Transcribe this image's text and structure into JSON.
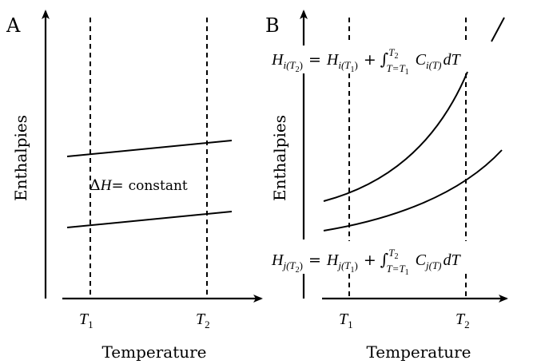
{
  "panel_a": {
    "label": "A",
    "y_axis_label": "Enthalpies",
    "x_axis_label": "Temperature",
    "t1_label": "T",
    "t1_sub": "1",
    "t2_label": "T",
    "t2_sub": "2",
    "delta_symbol": "Δ",
    "delta_var": "H",
    "delta_eq": "=",
    "delta_text": "constant"
  },
  "panel_b": {
    "label": "B",
    "y_axis_label": "Enthalpies",
    "x_axis_label": "Temperature",
    "t1_label": "T",
    "t1_sub": "1",
    "t2_label": "T",
    "t2_sub": "2",
    "eq_top": {
      "H": "H",
      "sub_i": "i(T",
      "sub_2": "2",
      "close": ")",
      "eq": "=",
      "H2": "H",
      "sub_i1": "i(T",
      "sub_1": "1",
      "close2": ")",
      "plus": "+",
      "integral": "∫",
      "upper": "T",
      "upper_sub": "2",
      "lower": "T=T",
      "lower_sub": "1",
      "C": "C",
      "c_sub": "i(T)",
      "dT": "dT"
    },
    "eq_bottom": {
      "H": "H",
      "sub_i": "j(T",
      "sub_2": "2",
      "close": ")",
      "eq": "=",
      "H2": "H",
      "sub_i1": "j(T",
      "sub_1": "1",
      "close2": ")",
      "plus": "+",
      "integral": "∫",
      "upper": "T",
      "upper_sub": "2",
      "lower": "T=T",
      "lower_sub": "1",
      "C": "C",
      "c_sub": "j(T)",
      "dT": "dT"
    }
  }
}
